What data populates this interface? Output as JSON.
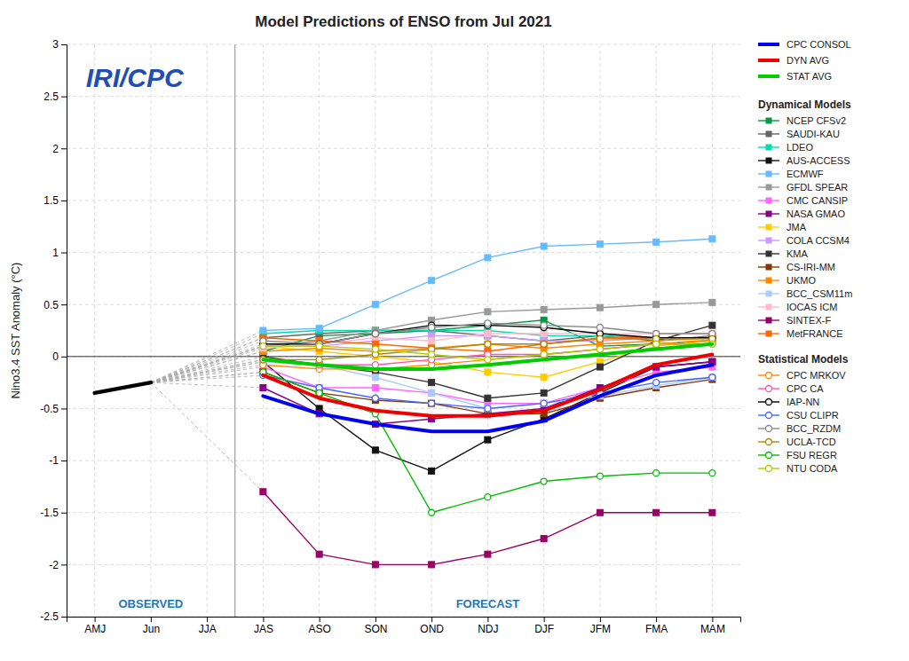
{
  "chart_data": {
    "type": "line",
    "title": "Model Predictions of ENSO from Jul 2021",
    "ylabel": "Nino3.4 SST Anomaly (°C)",
    "categories": [
      "AMJ",
      "Jun",
      "JJA",
      "JAS",
      "ASO",
      "SON",
      "OND",
      "NDJ",
      "DJF",
      "JFM",
      "FMA",
      "MAM"
    ],
    "ylim": [
      -2.5,
      3.0
    ],
    "yticks": [
      -2.5,
      -2,
      -1.5,
      -1,
      -0.5,
      0,
      0.5,
      1,
      1.5,
      2,
      2.5,
      3
    ],
    "grid": true,
    "legend": "right",
    "annotations": [
      "OBSERVED",
      "FORECAST",
      "IRI/CPC"
    ],
    "series": [
      {
        "color": "#000000",
        "values": [
          -0.35,
          -0.25,
          null,
          null,
          null,
          null,
          null,
          null,
          null,
          null,
          null,
          null
        ]
      },
      {
        "name": "NCEP CFSv2",
        "group": "Dynamical Models",
        "marker": "square",
        "color": "#009944",
        "values": [
          null,
          null,
          null,
          0.05,
          0.2,
          0.22,
          0.25,
          0.3,
          0.35,
          0.1,
          0.12,
          0.15
        ]
      },
      {
        "name": "SAUDI-KAU",
        "group": "Dynamical Models",
        "marker": "square",
        "color": "#666666",
        "values": [
          null,
          null,
          null,
          0.18,
          0.22,
          0.25,
          0.25,
          0.2,
          0.15,
          0.2,
          0.15,
          0.2
        ]
      },
      {
        "name": "LDEO",
        "group": "Dynamical Models",
        "marker": "square",
        "color": "#00ddaa",
        "values": [
          null,
          null,
          null,
          0.22,
          0.25,
          0.25,
          0.25,
          0.25,
          0.2,
          0.2,
          0.18,
          0.18
        ]
      },
      {
        "name": "AUS-ACCESS",
        "group": "Dynamical Models",
        "marker": "square",
        "color": "#111111",
        "values": [
          null,
          null,
          null,
          -0.05,
          -0.5,
          -0.9,
          -1.1,
          -0.8,
          -0.6,
          -0.35,
          -0.1,
          -0.05
        ]
      },
      {
        "name": "ECMWF",
        "group": "Dynamical Models",
        "marker": "square",
        "color": "#66bbff",
        "values": [
          null,
          null,
          null,
          0.25,
          0.27,
          0.5,
          0.73,
          0.95,
          1.06,
          1.08,
          1.1,
          1.13
        ]
      },
      {
        "name": "GFDL SPEAR",
        "group": "Dynamical Models",
        "marker": "square",
        "color": "#999999",
        "values": [
          null,
          null,
          null,
          0.1,
          0.15,
          0.25,
          0.35,
          0.43,
          0.45,
          0.47,
          0.5,
          0.52
        ]
      },
      {
        "name": "CMC CANSIP",
        "group": "Dynamical Models",
        "marker": "square",
        "color": "#ff66ff",
        "values": [
          null,
          null,
          null,
          -0.1,
          -0.3,
          -0.3,
          -0.35,
          -0.45,
          -0.45,
          -0.3,
          -0.15,
          -0.1
        ]
      },
      {
        "name": "NASA GMAO",
        "group": "Dynamical Models",
        "marker": "square",
        "color": "#880088",
        "values": [
          null,
          null,
          null,
          -0.3,
          -0.55,
          -0.65,
          -0.6,
          -0.55,
          -0.5,
          -0.3,
          -0.1,
          -0.05
        ]
      },
      {
        "name": "JMA",
        "group": "Dynamical Models",
        "marker": "square",
        "color": "#ffcc00",
        "values": [
          null,
          null,
          null,
          0.1,
          0.05,
          0.0,
          -0.05,
          -0.15,
          -0.2,
          -0.05,
          0.1,
          0.15
        ]
      },
      {
        "name": "COLA CCSM4",
        "group": "Dynamical Models",
        "marker": "square",
        "color": "#cc99ff",
        "values": [
          null,
          null,
          null,
          0.1,
          0.1,
          0.15,
          0.2,
          0.2,
          0.15,
          0.15,
          0.18,
          0.18
        ]
      },
      {
        "name": "KMA",
        "group": "Dynamical Models",
        "marker": "square",
        "color": "#333333",
        "values": [
          null,
          null,
          null,
          0.0,
          -0.08,
          -0.15,
          -0.25,
          -0.4,
          -0.35,
          -0.1,
          0.15,
          0.3
        ]
      },
      {
        "name": "CS-IRI-MM",
        "group": "Dynamical Models",
        "marker": "square",
        "color": "#883300",
        "values": [
          null,
          null,
          null,
          -0.15,
          -0.35,
          -0.42,
          -0.45,
          -0.55,
          -0.55,
          -0.4,
          -0.3,
          -0.22
        ]
      },
      {
        "name": "UKMO",
        "group": "Dynamical Models",
        "marker": "square",
        "color": "#ff8800",
        "values": [
          null,
          null,
          null,
          0.05,
          0.08,
          0.05,
          0.08,
          0.12,
          0.08,
          0.12,
          0.15,
          0.18
        ]
      },
      {
        "name": "BCC_CSM11m",
        "group": "Dynamical Models",
        "marker": "square",
        "color": "#aaccff",
        "values": [
          null,
          null,
          null,
          -0.05,
          -0.08,
          -0.2,
          -0.35,
          -0.5,
          -0.45,
          -0.38,
          -0.28,
          -0.2
        ]
      },
      {
        "name": "IOCAS ICM",
        "group": "Dynamical Models",
        "marker": "square",
        "color": "#ffbbcc",
        "values": [
          null,
          null,
          null,
          0.08,
          0.12,
          0.18,
          0.15,
          0.22,
          0.22,
          0.22,
          0.22,
          0.22
        ]
      },
      {
        "name": "SINTEX-F",
        "group": "Dynamical Models",
        "marker": "square",
        "color": "#990066",
        "values": [
          null,
          null,
          null,
          -1.3,
          -1.9,
          -2.0,
          -2.0,
          -1.9,
          -1.75,
          -1.5,
          -1.5,
          -1.5
        ]
      },
      {
        "name": "MetFRANCE",
        "group": "Dynamical Models",
        "marker": "square",
        "color": "#ff6600",
        "values": [
          null,
          null,
          null,
          0.18,
          0.15,
          0.12,
          0.08,
          0.05,
          0.12,
          0.18,
          0.18,
          0.18
        ]
      },
      {
        "name": "CPC MRKOV",
        "group": "Statistical Models",
        "marker": "circle-open",
        "color": "#ff8800",
        "values": [
          null,
          null,
          null,
          -0.08,
          -0.12,
          -0.12,
          -0.08,
          -0.03,
          0.02,
          0.07,
          0.12,
          0.16
        ]
      },
      {
        "name": "CPC CA",
        "group": "Statistical Models",
        "marker": "circle-open",
        "color": "#ff55aa",
        "values": [
          null,
          null,
          null,
          -0.03,
          -0.08,
          -0.08,
          -0.03,
          0.02,
          0.02,
          0.07,
          0.12,
          0.12
        ]
      },
      {
        "name": "IAP-NN",
        "group": "Statistical Models",
        "marker": "circle-open",
        "color": "#000000",
        "values": [
          null,
          null,
          null,
          0.12,
          0.12,
          0.22,
          0.3,
          0.3,
          0.28,
          0.22,
          0.18,
          0.18
        ]
      },
      {
        "name": "CSU CLIPR",
        "group": "Statistical Models",
        "marker": "circle-open",
        "color": "#4466ff",
        "values": [
          null,
          null,
          null,
          -0.18,
          -0.3,
          -0.4,
          -0.45,
          -0.5,
          -0.45,
          -0.35,
          -0.25,
          -0.2
        ]
      },
      {
        "name": "BCC_RZDM",
        "group": "Statistical Models",
        "marker": "circle-open",
        "color": "#888888",
        "values": [
          null,
          null,
          null,
          0.15,
          0.12,
          0.22,
          0.28,
          0.32,
          0.3,
          0.28,
          0.22,
          0.22
        ]
      },
      {
        "name": "UCLA-TCD",
        "group": "Statistical Models",
        "marker": "circle-open",
        "color": "#aa8800",
        "values": [
          null,
          null,
          null,
          -0.03,
          -0.03,
          0.02,
          0.07,
          0.12,
          0.12,
          0.17,
          0.17,
          0.17
        ]
      },
      {
        "name": "FSU REGR",
        "group": "Statistical Models",
        "marker": "circle-open",
        "color": "#00bb00",
        "values": [
          null,
          null,
          null,
          -0.15,
          -0.35,
          -0.55,
          -1.5,
          -1.35,
          -1.2,
          -1.15,
          -1.12,
          -1.12
        ]
      },
      {
        "name": "NTU CODA",
        "group": "Statistical Models",
        "marker": "circle-open",
        "color": "#aacc00",
        "values": [
          null,
          null,
          null,
          0.1,
          0.1,
          0.07,
          0.02,
          -0.03,
          0.02,
          0.07,
          0.12,
          0.12
        ]
      },
      {
        "name": "CPC CONSOL",
        "color": "#0000ee",
        "values": [
          null,
          null,
          null,
          -0.38,
          -0.55,
          -0.65,
          -0.72,
          -0.72,
          -0.62,
          -0.38,
          -0.18,
          -0.08
        ]
      },
      {
        "name": "DYN AVG",
        "color": "#ee0000",
        "values": [
          null,
          null,
          null,
          -0.18,
          -0.4,
          -0.52,
          -0.57,
          -0.57,
          -0.52,
          -0.32,
          -0.08,
          0.02
        ]
      },
      {
        "name": "STAT AVG",
        "color": "#00cc00",
        "values": [
          null,
          null,
          null,
          -0.03,
          -0.08,
          -0.12,
          -0.12,
          -0.08,
          -0.03,
          0.02,
          0.07,
          0.12
        ]
      }
    ]
  }
}
